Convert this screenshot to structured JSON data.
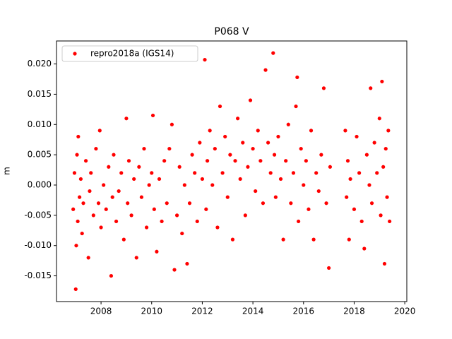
{
  "chart_data": {
    "type": "scatter",
    "title": "P068 V",
    "y_label": "m",
    "xlim": [
      2006.24,
      2020.08
    ],
    "xticks": [
      2008,
      2010,
      2012,
      2014,
      2016,
      2018,
      2020
    ],
    "ylim": [
      -0.01925,
      0.0238
    ],
    "yticks": [
      {
        "value": -0.015,
        "label": "-0.015"
      },
      {
        "value": -0.01,
        "label": "-0.010"
      },
      {
        "value": -0.005,
        "label": "-0.005"
      },
      {
        "value": 0,
        "label": "0.000"
      },
      {
        "value": 0.005,
        "label": "0.005"
      },
      {
        "value": 0.01,
        "label": "0.010"
      },
      {
        "value": 0.015,
        "label": "0.015"
      },
      {
        "value": 0.02,
        "label": "0.020"
      }
    ],
    "grid": false,
    "legend": "upper left",
    "x": [
      2006.9,
      2006.95,
      2007.0,
      2007.02,
      2007.05,
      2007.08,
      2007.1,
      2007.15,
      2007.2,
      2007.25,
      2007.3,
      2007.4,
      2007.5,
      2007.55,
      2007.6,
      2007.7,
      2007.8,
      2007.9,
      2007.95,
      2008.0,
      2008.1,
      2008.2,
      2008.3,
      2008.4,
      2008.45,
      2008.5,
      2008.6,
      2008.7,
      2008.8,
      2008.9,
      2009.0,
      2009.05,
      2009.1,
      2009.2,
      2009.3,
      2009.4,
      2009.5,
      2009.6,
      2009.7,
      2009.8,
      2009.9,
      2010.0,
      2010.05,
      2010.1,
      2010.2,
      2010.3,
      2010.4,
      2010.5,
      2010.6,
      2010.7,
      2010.8,
      2010.9,
      2011.0,
      2011.1,
      2011.2,
      2011.3,
      2011.4,
      2011.5,
      2011.6,
      2011.7,
      2011.8,
      2011.9,
      2012.0,
      2012.1,
      2012.15,
      2012.2,
      2012.3,
      2012.4,
      2012.5,
      2012.6,
      2012.7,
      2012.8,
      2012.9,
      2013.0,
      2013.1,
      2013.2,
      2013.3,
      2013.4,
      2013.5,
      2013.6,
      2013.7,
      2013.8,
      2013.9,
      2014.0,
      2014.1,
      2014.2,
      2014.3,
      2014.4,
      2014.5,
      2014.6,
      2014.7,
      2014.8,
      2014.85,
      2014.9,
      2015.0,
      2015.1,
      2015.2,
      2015.3,
      2015.4,
      2015.5,
      2015.6,
      2015.7,
      2015.75,
      2015.8,
      2015.9,
      2016.0,
      2016.1,
      2016.2,
      2016.3,
      2016.4,
      2016.5,
      2016.6,
      2016.7,
      2016.8,
      2016.9,
      2017.0,
      2017.05,
      2017.65,
      2017.7,
      2017.75,
      2017.8,
      2017.85,
      2018.0,
      2018.1,
      2018.2,
      2018.3,
      2018.4,
      2018.5,
      2018.6,
      2018.65,
      2018.7,
      2018.8,
      2018.9,
      2019.0,
      2019.05,
      2019.1,
      2019.15,
      2019.2,
      2019.25,
      2019.3,
      2019.35,
      2019.4
    ],
    "series": [
      {
        "name": "repro2018a (IGS14)",
        "color": "#ff0000",
        "values": [
          -0.004,
          0.002,
          -0.0172,
          -0.01,
          0.005,
          -0.006,
          0.008,
          -0.002,
          0.001,
          -0.008,
          -0.003,
          0.004,
          -0.012,
          -0.001,
          0.002,
          -0.005,
          0.006,
          -0.003,
          0.009,
          -0.007,
          0.0,
          -0.004,
          0.003,
          -0.015,
          -0.002,
          0.005,
          -0.006,
          -0.001,
          0.002,
          -0.009,
          0.011,
          -0.003,
          0.004,
          -0.005,
          0.001,
          -0.012,
          0.003,
          -0.002,
          0.006,
          -0.007,
          0.0,
          0.002,
          0.0115,
          -0.004,
          -0.011,
          0.001,
          -0.006,
          0.004,
          -0.003,
          0.006,
          0.01,
          -0.014,
          -0.005,
          0.003,
          -0.008,
          0.0,
          -0.013,
          -0.003,
          0.005,
          0.002,
          -0.006,
          0.007,
          0.001,
          0.0207,
          -0.004,
          0.004,
          0.009,
          0.0,
          0.006,
          -0.007,
          0.013,
          0.002,
          0.008,
          -0.002,
          0.005,
          -0.009,
          0.004,
          0.011,
          0.001,
          0.007,
          -0.005,
          0.003,
          0.014,
          0.006,
          -0.001,
          0.009,
          0.004,
          -0.003,
          0.019,
          0.007,
          0.002,
          0.0218,
          0.005,
          -0.002,
          0.008,
          0.001,
          -0.009,
          0.004,
          0.01,
          -0.003,
          0.002,
          0.013,
          0.0178,
          -0.006,
          0.006,
          0.0,
          0.004,
          -0.004,
          0.009,
          -0.009,
          0.002,
          -0.001,
          0.005,
          0.016,
          -0.003,
          -0.0137,
          0.003,
          0.009,
          -0.002,
          0.004,
          -0.009,
          0.001,
          -0.004,
          0.008,
          0.002,
          -0.006,
          -0.0105,
          0.005,
          0.0,
          0.016,
          -0.003,
          0.007,
          0.002,
          0.011,
          -0.005,
          0.0171,
          0.003,
          -0.013,
          0.006,
          -0.002,
          0.009,
          -0.006
        ]
      }
    ]
  }
}
